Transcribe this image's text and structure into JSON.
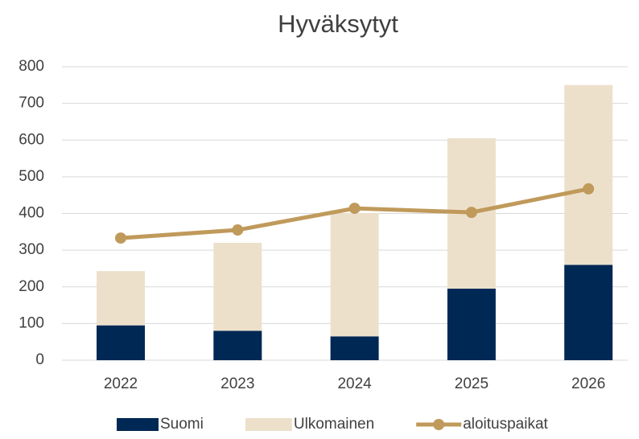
{
  "chart_data": {
    "type": "bar_line",
    "title": "Hyväksytyt",
    "categories": [
      "2022",
      "2023",
      "2024",
      "2025",
      "2026"
    ],
    "series": [
      {
        "name": "Suomi",
        "color": "#002855",
        "kind": "bar",
        "values": [
          95,
          80,
          65,
          195,
          260
        ]
      },
      {
        "name": "Ulkomainen",
        "color": "#ede0cb",
        "kind": "bar",
        "values": [
          148,
          240,
          336,
          410,
          490
        ]
      },
      {
        "name": "aloituspaikat",
        "color": "#c09a5b",
        "kind": "line",
        "values": [
          333,
          355,
          414,
          403,
          467
        ]
      }
    ],
    "stacked": true,
    "ylim": [
      0,
      800
    ],
    "yticks": [
      0,
      100,
      200,
      300,
      400,
      500,
      600,
      700,
      800
    ],
    "grid": true,
    "legend": "bottom"
  }
}
